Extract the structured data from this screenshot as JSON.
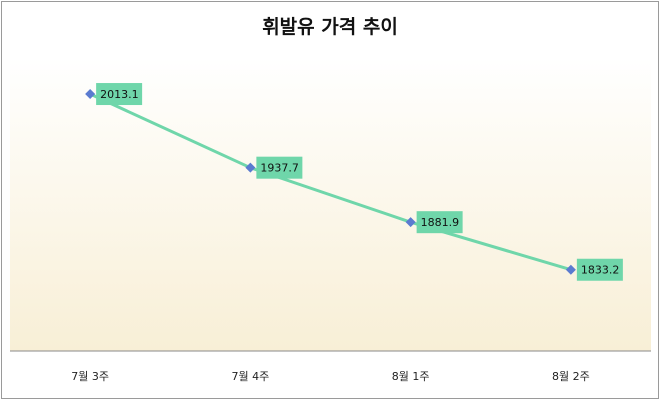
{
  "chart_data": {
    "type": "line",
    "title": "휘발유 가격 추이",
    "categories": [
      "7월 3주",
      "7월 4주",
      "8월 1주",
      "8월 2주"
    ],
    "series": [
      {
        "values": [
          2013.1,
          1937.7,
          1881.9,
          1833.2
        ]
      }
    ],
    "data_labels": [
      "2013.1",
      "1937.7",
      "1881.9",
      "1833.2"
    ],
    "ylim": [
      1750,
      2050
    ],
    "grid": false,
    "legend": "none",
    "colors": {
      "line": "#6fd6aa",
      "marker": "#5b7bd0",
      "label_bg": "#6fd6aa",
      "plot_top": "#ffffff",
      "plot_bottom": "#f8efd6"
    }
  }
}
